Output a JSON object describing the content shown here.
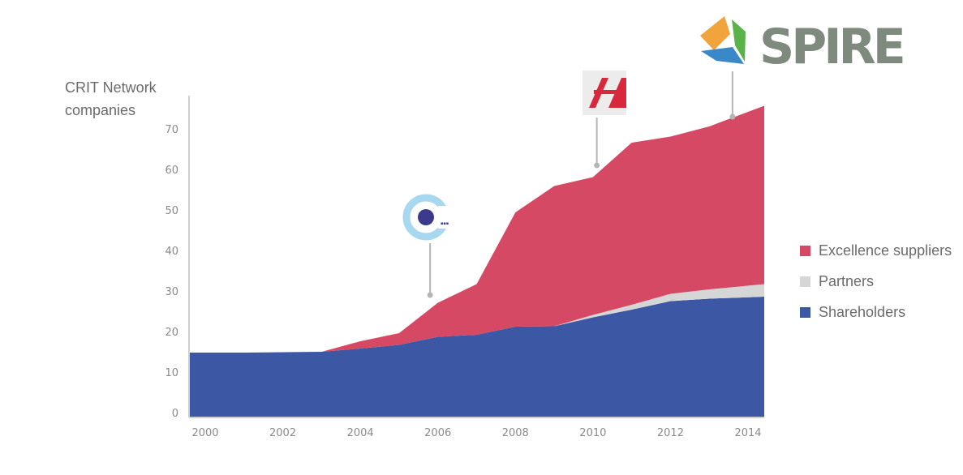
{
  "chart_data": {
    "type": "area",
    "stacked": true,
    "ylabel_line1": "CRIT Network",
    "ylabel_line2": "companies",
    "xlim": [
      2000,
      2014.4
    ],
    "ylim": [
      0,
      75
    ],
    "x_ticks": [
      "2000",
      "2002",
      "2004",
      "2006",
      "2008",
      "2010",
      "2012",
      "2014"
    ],
    "y_ticks": [
      "0",
      "10",
      "20",
      "30",
      "40",
      "50",
      "60",
      "70"
    ],
    "grid": false,
    "legend_position": "right",
    "x": [
      2000,
      2001,
      2002,
      2003,
      2004,
      2005,
      2006,
      2007,
      2008,
      2009,
      2010,
      2011,
      2012,
      2013,
      2014.4
    ],
    "series": [
      {
        "name": "Shareholders",
        "color": "#3c58a4",
        "values": [
          14.8,
          14.8,
          14.9,
          15.0,
          15.8,
          16.7,
          18.7,
          19.2,
          21.2,
          21.3,
          23.5,
          25.4,
          27.5,
          28.1,
          28.6
        ]
      },
      {
        "name": "Partners",
        "color": "#d6d6d6",
        "values": [
          0,
          0,
          0,
          0,
          0,
          0,
          0,
          0,
          0,
          0,
          0.6,
          1.2,
          1.8,
          2.3,
          3.1
        ]
      },
      {
        "name": "Excellence suppliers",
        "color": "#d54964",
        "values": [
          0,
          0,
          0,
          0,
          1.8,
          2.9,
          8.4,
          12.5,
          28.2,
          34.6,
          34.0,
          40.0,
          38.8,
          40.2,
          44.0
        ]
      }
    ],
    "callouts": [
      {
        "name": "network-logo",
        "x": 2005.8,
        "y": 29
      },
      {
        "name": "h-logo",
        "x": 2010.1,
        "y": 61
      },
      {
        "name": "spire-logo",
        "x": 2013.6,
        "y": 73
      }
    ],
    "spire_text": "SPIRE"
  }
}
